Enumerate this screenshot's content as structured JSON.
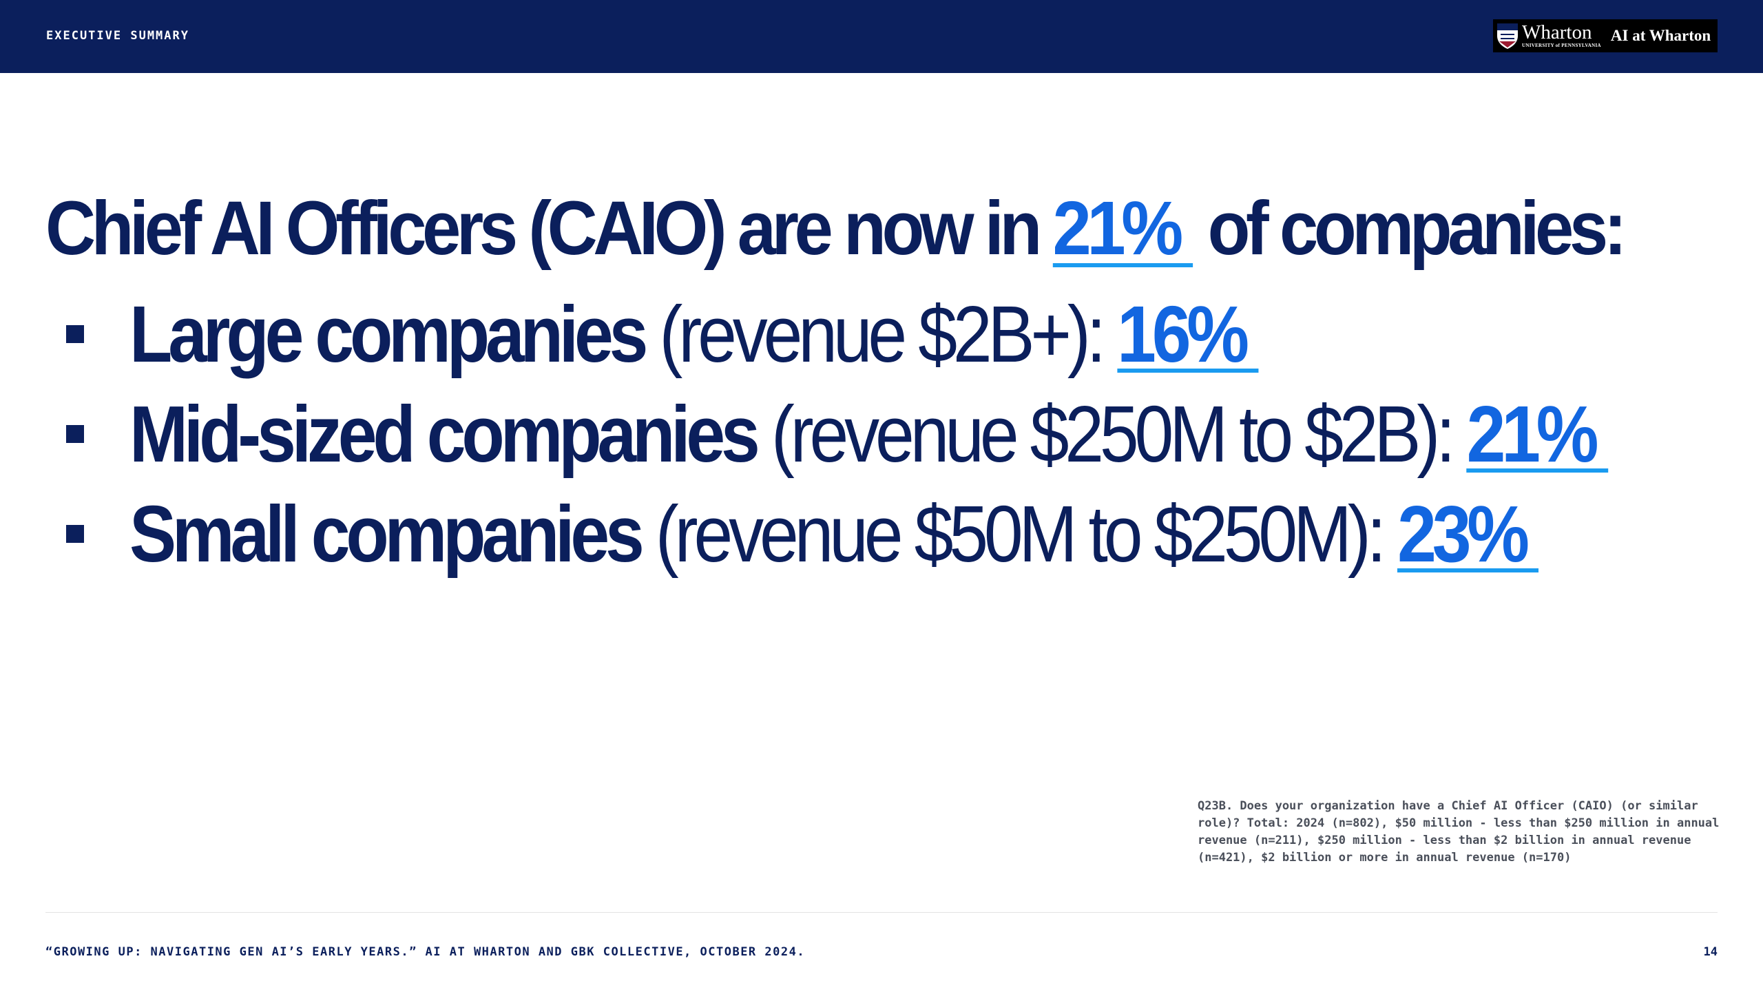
{
  "header": {
    "section_label": "EXECUTIVE SUMMARY",
    "logo": {
      "wharton": "Wharton",
      "university": "UNIVERSITY of PENNSYLVANIA",
      "ai_at_wharton": "AI at Wharton"
    }
  },
  "headline": {
    "prefix": "Chief AI Officers (CAIO) are now in ",
    "value": "21%",
    "suffix": " of companies:"
  },
  "bullets": [
    {
      "bold": "Large companies",
      "normal": " (revenue $2B+): ",
      "value": "16%"
    },
    {
      "bold": "Mid-sized companies",
      "normal": " (revenue $250M to $2B): ",
      "value": "21%"
    },
    {
      "bold": "Small companies",
      "normal": " (revenue $50M to $250M): ",
      "value": "23%"
    }
  ],
  "footnote": "Q23B. Does your organization have a Chief AI Officer (CAIO) (or similar role)? Total: 2024 (n=802), $50 million - less than $250 million in annual revenue (n=211), $250 million - less than $2 billion in annual revenue (n=421), $2 billion or more in annual revenue (n=170)",
  "footer": {
    "citation": "“GROWING UP: NAVIGATING GEN AI’S EARLY YEARS.” AI AT WHARTON AND GBK COLLECTIVE, OCTOBER 2024.",
    "page_number": "14"
  },
  "colors": {
    "navy": "#0b1f5c",
    "accent_blue": "#1266e0",
    "underline_blue": "#1a9bf0"
  },
  "icons": [
    "penn-shield-icon"
  ]
}
